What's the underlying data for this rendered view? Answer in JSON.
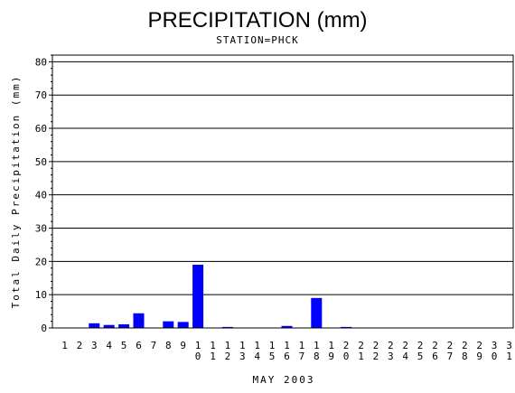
{
  "chart_data": {
    "type": "bar",
    "title": "PRECIPITATION (mm)",
    "subtitle": "STATION=PHCK",
    "xlabel": "MAY 2003",
    "ylabel": "Total Daily Precipitation (mm)",
    "ylim": [
      0,
      82
    ],
    "yticks": [
      0,
      10,
      20,
      30,
      40,
      50,
      60,
      70,
      80
    ],
    "grid": true,
    "bar_color": "#0000ff",
    "categories": [
      "1",
      "2",
      "3",
      "4",
      "5",
      "6",
      "7",
      "8",
      "9",
      "10",
      "11",
      "12",
      "13",
      "14",
      "15",
      "16",
      "17",
      "18",
      "19",
      "20",
      "21",
      "22",
      "23",
      "24",
      "25",
      "26",
      "27",
      "28",
      "29",
      "30",
      "31"
    ],
    "values": [
      0,
      0,
      1.4,
      0.9,
      1.1,
      4.4,
      0,
      2.0,
      1.8,
      19.0,
      0,
      0.3,
      0,
      0,
      0,
      0.6,
      0,
      9.0,
      0,
      0.3,
      0,
      0,
      0,
      0,
      0,
      0,
      0,
      0,
      0,
      0,
      0
    ]
  }
}
